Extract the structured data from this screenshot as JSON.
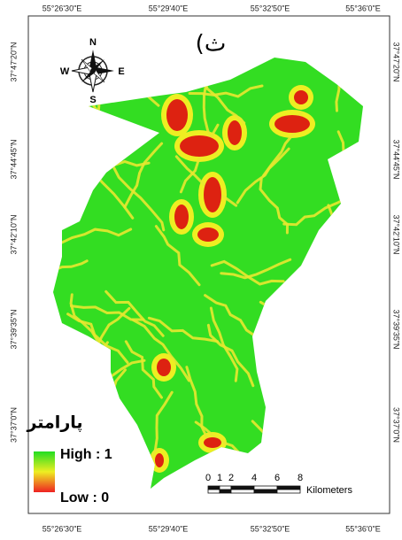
{
  "grid_labels": {
    "top": [
      "55°26'30\"E",
      "55°29'40\"E",
      "55°32'50\"E",
      "55°36'0\"E"
    ],
    "bottom": [
      "55°26'30\"E",
      "55°29'40\"E",
      "55°32'50\"E",
      "55°36'0\"E"
    ],
    "left": [
      "37°47'20\"N",
      "37°44'45\"N",
      "37°42'10\"N",
      "37°39'35\"N",
      "37°37'0\"N"
    ],
    "right": [
      "37°47'20\"N",
      "37°44'45\"N",
      "37°42'10\"N",
      "37°39'35\"N",
      "37°37'0\"N"
    ]
  },
  "panel_label": "(ث",
  "north_arrow": {
    "n": "N",
    "s": "S",
    "e": "E",
    "w": "W"
  },
  "legend": {
    "title": "پارامتر",
    "high": "High : 1",
    "low": "Low : 0"
  },
  "scale_bar": {
    "ticks": [
      "0",
      "1",
      "2",
      "4",
      "6",
      "8"
    ],
    "unit": "Kilometers"
  }
}
